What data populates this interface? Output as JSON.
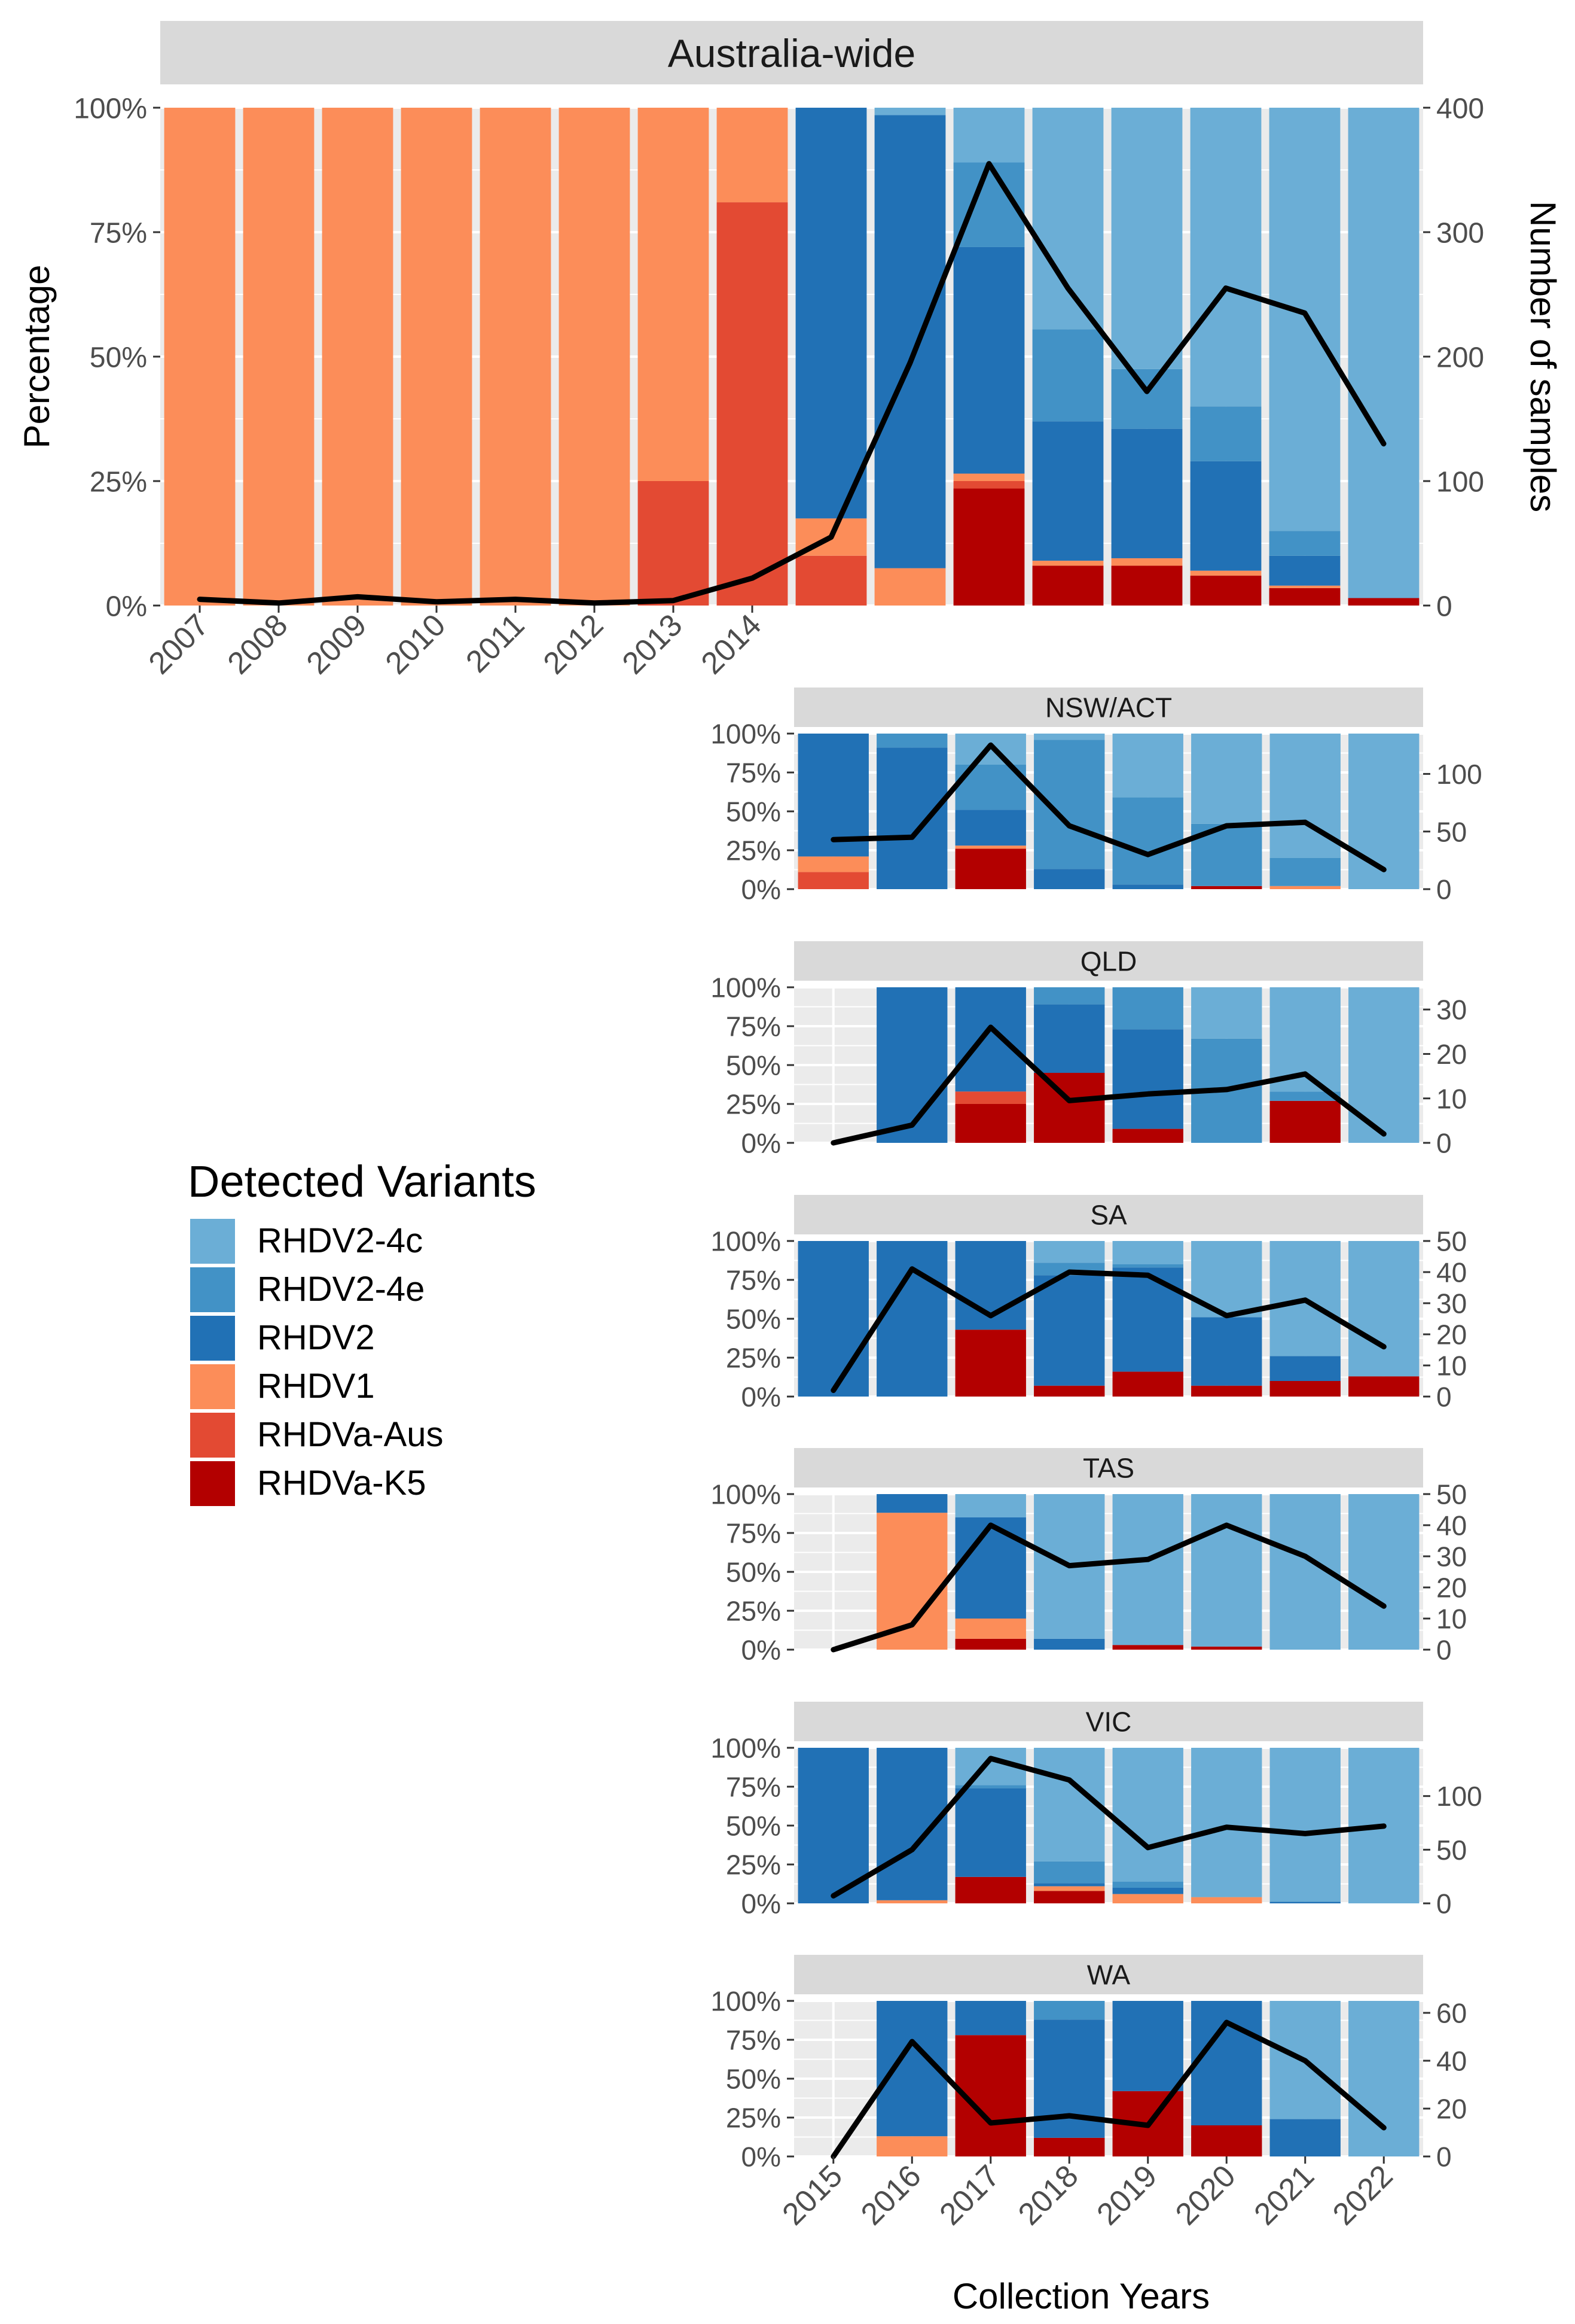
{
  "chart_data": {
    "type": "stacked_bar_with_line",
    "xlabel": "Collection Years",
    "ylabel": "Percentage",
    "y2label": "Number of samples",
    "legend": {
      "title": "Detected Variants",
      "items": [
        {
          "name": "RHDV2-4c",
          "color": "#6BAED6"
        },
        {
          "name": "RHDV2-4e",
          "color": "#4292C6"
        },
        {
          "name": "RHDV2",
          "color": "#2171B5"
        },
        {
          "name": "RHDV1",
          "color": "#FC8D59"
        },
        {
          "name": "RHDVa-Aus",
          "color": "#E34A33"
        },
        {
          "name": "RHDVa-K5",
          "color": "#B30000"
        }
      ]
    },
    "stack_order_bottom_to_top": [
      "RHDVa-K5",
      "RHDVa-Aus",
      "RHDV1",
      "RHDV2",
      "RHDV2-4e",
      "RHDV2-4c"
    ],
    "panels": [
      {
        "title": "Australia-wide",
        "years": [
          "2007",
          "2008",
          "2009",
          "2010",
          "2011",
          "2012",
          "2013",
          "2014",
          "2015",
          "2016",
          "2017",
          "2018",
          "2019",
          "2020",
          "2021",
          "2022"
        ],
        "y_ticks": [
          "0%",
          "25%",
          "50%",
          "75%",
          "100%"
        ],
        "y2_max": 400,
        "y2_ticks": [
          "0",
          "100",
          "200",
          "300",
          "400"
        ],
        "y2_tick_values": [
          0,
          100,
          200,
          300,
          400
        ],
        "samples": [
          5,
          2,
          7,
          3,
          5,
          2,
          4,
          22,
          55,
          195,
          355,
          255,
          172,
          255,
          235,
          130
        ],
        "bars": [
          {
            "year": "2007",
            "RHDVa-K5": 0,
            "RHDVa-Aus": 0,
            "RHDV1": 100,
            "RHDV2": 0,
            "RHDV2-4e": 0,
            "RHDV2-4c": 0
          },
          {
            "year": "2008",
            "RHDVa-K5": 0,
            "RHDVa-Aus": 0,
            "RHDV1": 100,
            "RHDV2": 0,
            "RHDV2-4e": 0,
            "RHDV2-4c": 0
          },
          {
            "year": "2009",
            "RHDVa-K5": 0,
            "RHDVa-Aus": 0,
            "RHDV1": 100,
            "RHDV2": 0,
            "RHDV2-4e": 0,
            "RHDV2-4c": 0
          },
          {
            "year": "2010",
            "RHDVa-K5": 0,
            "RHDVa-Aus": 0,
            "RHDV1": 100,
            "RHDV2": 0,
            "RHDV2-4e": 0,
            "RHDV2-4c": 0
          },
          {
            "year": "2011",
            "RHDVa-K5": 0,
            "RHDVa-Aus": 0,
            "RHDV1": 100,
            "RHDV2": 0,
            "RHDV2-4e": 0,
            "RHDV2-4c": 0
          },
          {
            "year": "2012",
            "RHDVa-K5": 0,
            "RHDVa-Aus": 0,
            "RHDV1": 100,
            "RHDV2": 0,
            "RHDV2-4e": 0,
            "RHDV2-4c": 0
          },
          {
            "year": "2013",
            "RHDVa-K5": 0,
            "RHDVa-Aus": 25,
            "RHDV1": 75,
            "RHDV2": 0,
            "RHDV2-4e": 0,
            "RHDV2-4c": 0
          },
          {
            "year": "2014",
            "RHDVa-K5": 0,
            "RHDVa-Aus": 81,
            "RHDV1": 19,
            "RHDV2": 0,
            "RHDV2-4e": 0,
            "RHDV2-4c": 0
          },
          {
            "year": "2015",
            "RHDVa-K5": 0,
            "RHDVa-Aus": 10,
            "RHDV1": 7.5,
            "RHDV2": 82.5,
            "RHDV2-4e": 0,
            "RHDV2-4c": 0
          },
          {
            "year": "2016",
            "RHDVa-K5": 0,
            "RHDVa-Aus": 0,
            "RHDV1": 7.5,
            "RHDV2": 91,
            "RHDV2-4e": 0,
            "RHDV2-4c": 1.5
          },
          {
            "year": "2017",
            "RHDVa-K5": 23.5,
            "RHDVa-Aus": 1.5,
            "RHDV1": 1.5,
            "RHDV2": 45.5,
            "RHDV2-4e": 17,
            "RHDV2-4c": 11
          },
          {
            "year": "2018",
            "RHDVa-K5": 8,
            "RHDVa-Aus": 0,
            "RHDV1": 1,
            "RHDV2": 28,
            "RHDV2-4e": 18.5,
            "RHDV2-4c": 44.5
          },
          {
            "year": "2019",
            "RHDVa-K5": 8,
            "RHDVa-Aus": 0,
            "RHDV1": 1.5,
            "RHDV2": 26,
            "RHDV2-4e": 12,
            "RHDV2-4c": 52.5
          },
          {
            "year": "2020",
            "RHDVa-K5": 6,
            "RHDVa-Aus": 0,
            "RHDV1": 1,
            "RHDV2": 22,
            "RHDV2-4e": 11,
            "RHDV2-4c": 60
          },
          {
            "year": "2021",
            "RHDVa-K5": 3.5,
            "RHDVa-Aus": 0,
            "RHDV1": 0.5,
            "RHDV2": 6,
            "RHDV2-4e": 5,
            "RHDV2-4c": 85
          },
          {
            "year": "2022",
            "RHDVa-K5": 1.5,
            "RHDVa-Aus": 0,
            "RHDV1": 0,
            "RHDV2": 0,
            "RHDV2-4e": 0,
            "RHDV2-4c": 98.5
          }
        ]
      },
      {
        "title": "NSW/ACT",
        "years": [
          "2015",
          "2016",
          "2017",
          "2018",
          "2019",
          "2020",
          "2021",
          "2022"
        ],
        "y_ticks": [
          "0%",
          "25%",
          "50%",
          "75%",
          "100%"
        ],
        "y2_max": 135,
        "y2_ticks": [
          "0",
          "50",
          "100"
        ],
        "y2_tick_values": [
          0,
          50,
          100
        ],
        "samples": [
          43,
          45,
          125,
          55,
          30,
          55,
          58,
          17
        ],
        "bars": [
          {
            "year": "2015",
            "RHDVa-K5": 0,
            "RHDVa-Aus": 11,
            "RHDV1": 10,
            "RHDV2": 79,
            "RHDV2-4e": 0,
            "RHDV2-4c": 0
          },
          {
            "year": "2016",
            "RHDVa-K5": 0,
            "RHDVa-Aus": 0,
            "RHDV1": 0,
            "RHDV2": 91,
            "RHDV2-4e": 9,
            "RHDV2-4c": 0
          },
          {
            "year": "2017",
            "RHDVa-K5": 26,
            "RHDVa-Aus": 0,
            "RHDV1": 2,
            "RHDV2": 23,
            "RHDV2-4e": 29,
            "RHDV2-4c": 20
          },
          {
            "year": "2018",
            "RHDVa-K5": 0,
            "RHDVa-Aus": 0,
            "RHDV1": 0,
            "RHDV2": 13,
            "RHDV2-4e": 83,
            "RHDV2-4c": 4
          },
          {
            "year": "2019",
            "RHDVa-K5": 0,
            "RHDVa-Aus": 0,
            "RHDV1": 0,
            "RHDV2": 3,
            "RHDV2-4e": 56,
            "RHDV2-4c": 41
          },
          {
            "year": "2020",
            "RHDVa-K5": 2,
            "RHDVa-Aus": 0,
            "RHDV1": 0,
            "RHDV2": 0,
            "RHDV2-4e": 40,
            "RHDV2-4c": 58
          },
          {
            "year": "2021",
            "RHDVa-K5": 0,
            "RHDVa-Aus": 0,
            "RHDV1": 2,
            "RHDV2": 0,
            "RHDV2-4e": 18,
            "RHDV2-4c": 80
          },
          {
            "year": "2022",
            "RHDVa-K5": 0,
            "RHDVa-Aus": 0,
            "RHDV1": 0,
            "RHDV2": 0,
            "RHDV2-4e": 0,
            "RHDV2-4c": 100
          }
        ]
      },
      {
        "title": "QLD",
        "years": [
          "2015",
          "2016",
          "2017",
          "2018",
          "2019",
          "2020",
          "2021",
          "2022"
        ],
        "y_ticks": [
          "0%",
          "25%",
          "50%",
          "75%",
          "100%"
        ],
        "y2_max": 35,
        "y2_ticks": [
          "0",
          "10",
          "20",
          "30"
        ],
        "y2_tick_values": [
          0,
          10,
          20,
          30
        ],
        "samples": [
          0,
          4,
          26,
          9.5,
          11,
          12,
          15.5,
          2
        ],
        "bars": [
          {
            "year": "2015",
            "RHDVa-K5": 0,
            "RHDVa-Aus": 0,
            "RHDV1": 0,
            "RHDV2": 0,
            "RHDV2-4e": 0,
            "RHDV2-4c": 0
          },
          {
            "year": "2016",
            "RHDVa-K5": 0,
            "RHDVa-Aus": 0,
            "RHDV1": 0,
            "RHDV2": 100,
            "RHDV2-4e": 0,
            "RHDV2-4c": 0
          },
          {
            "year": "2017",
            "RHDVa-K5": 25,
            "RHDVa-Aus": 8,
            "RHDV1": 0,
            "RHDV2": 67,
            "RHDV2-4e": 0,
            "RHDV2-4c": 0
          },
          {
            "year": "2018",
            "RHDVa-K5": 45,
            "RHDVa-Aus": 0,
            "RHDV1": 0,
            "RHDV2": 44,
            "RHDV2-4e": 11,
            "RHDV2-4c": 0
          },
          {
            "year": "2019",
            "RHDVa-K5": 9,
            "RHDVa-Aus": 0,
            "RHDV1": 0,
            "RHDV2": 64,
            "RHDV2-4e": 27,
            "RHDV2-4c": 0
          },
          {
            "year": "2020",
            "RHDVa-K5": 0,
            "RHDVa-Aus": 0,
            "RHDV1": 0,
            "RHDV2": 0,
            "RHDV2-4e": 67,
            "RHDV2-4c": 33
          },
          {
            "year": "2021",
            "RHDVa-K5": 27,
            "RHDVa-Aus": 0,
            "RHDV1": 0,
            "RHDV2": 0,
            "RHDV2-4e": 6,
            "RHDV2-4c": 67
          },
          {
            "year": "2022",
            "RHDVa-K5": 0,
            "RHDVa-Aus": 0,
            "RHDV1": 0,
            "RHDV2": 0,
            "RHDV2-4e": 0,
            "RHDV2-4c": 100
          }
        ]
      },
      {
        "title": "SA",
        "years": [
          "2015",
          "2016",
          "2017",
          "2018",
          "2019",
          "2020",
          "2021",
          "2022"
        ],
        "y_ticks": [
          "0%",
          "25%",
          "50%",
          "75%",
          "100%"
        ],
        "y2_max": 50,
        "y2_ticks": [
          "0",
          "10",
          "20",
          "30",
          "40",
          "50"
        ],
        "y2_tick_values": [
          0,
          10,
          20,
          30,
          40,
          50
        ],
        "samples": [
          2,
          41,
          26,
          40,
          39,
          26,
          31,
          16
        ],
        "bars": [
          {
            "year": "2015",
            "RHDVa-K5": 0,
            "RHDVa-Aus": 0,
            "RHDV1": 0,
            "RHDV2": 100,
            "RHDV2-4e": 0,
            "RHDV2-4c": 0
          },
          {
            "year": "2016",
            "RHDVa-K5": 0,
            "RHDVa-Aus": 0,
            "RHDV1": 0,
            "RHDV2": 100,
            "RHDV2-4e": 0,
            "RHDV2-4c": 0
          },
          {
            "year": "2017",
            "RHDVa-K5": 43,
            "RHDVa-Aus": 0,
            "RHDV1": 0,
            "RHDV2": 57,
            "RHDV2-4e": 0,
            "RHDV2-4c": 0
          },
          {
            "year": "2018",
            "RHDVa-K5": 7,
            "RHDVa-Aus": 0,
            "RHDV1": 0,
            "RHDV2": 71,
            "RHDV2-4e": 8,
            "RHDV2-4c": 14
          },
          {
            "year": "2019",
            "RHDVa-K5": 16,
            "RHDVa-Aus": 0,
            "RHDV1": 0,
            "RHDV2": 67,
            "RHDV2-4e": 2,
            "RHDV2-4c": 15
          },
          {
            "year": "2020",
            "RHDVa-K5": 7,
            "RHDVa-Aus": 0,
            "RHDV1": 0,
            "RHDV2": 44,
            "RHDV2-4e": 0,
            "RHDV2-4c": 49
          },
          {
            "year": "2021",
            "RHDVa-K5": 10,
            "RHDVa-Aus": 0,
            "RHDV1": 0,
            "RHDV2": 16,
            "RHDV2-4e": 0,
            "RHDV2-4c": 74
          },
          {
            "year": "2022",
            "RHDVa-K5": 13,
            "RHDVa-Aus": 0,
            "RHDV1": 0,
            "RHDV2": 0,
            "RHDV2-4e": 0,
            "RHDV2-4c": 87
          }
        ]
      },
      {
        "title": "TAS",
        "years": [
          "2015",
          "2016",
          "2017",
          "2018",
          "2019",
          "2020",
          "2021",
          "2022"
        ],
        "y_ticks": [
          "0%",
          "25%",
          "50%",
          "75%",
          "100%"
        ],
        "y2_max": 50,
        "y2_ticks": [
          "0",
          "10",
          "20",
          "30",
          "40",
          "50"
        ],
        "y2_tick_values": [
          0,
          10,
          20,
          30,
          40,
          50
        ],
        "samples": [
          0,
          8,
          40,
          27,
          29,
          40,
          30,
          14
        ],
        "bars": [
          {
            "year": "2015",
            "RHDVa-K5": 0,
            "RHDVa-Aus": 0,
            "RHDV1": 0,
            "RHDV2": 0,
            "RHDV2-4e": 0,
            "RHDV2-4c": 0
          },
          {
            "year": "2016",
            "RHDVa-K5": 0,
            "RHDVa-Aus": 0,
            "RHDV1": 88,
            "RHDV2": 12,
            "RHDV2-4e": 0,
            "RHDV2-4c": 0
          },
          {
            "year": "2017",
            "RHDVa-K5": 7,
            "RHDVa-Aus": 0,
            "RHDV1": 13,
            "RHDV2": 65,
            "RHDV2-4e": 0,
            "RHDV2-4c": 15
          },
          {
            "year": "2018",
            "RHDVa-K5": 0,
            "RHDVa-Aus": 0,
            "RHDV1": 0,
            "RHDV2": 7,
            "RHDV2-4e": 0,
            "RHDV2-4c": 93
          },
          {
            "year": "2019",
            "RHDVa-K5": 3,
            "RHDVa-Aus": 0,
            "RHDV1": 0,
            "RHDV2": 0,
            "RHDV2-4e": 0,
            "RHDV2-4c": 97
          },
          {
            "year": "2020",
            "RHDVa-K5": 2,
            "RHDVa-Aus": 0,
            "RHDV1": 0,
            "RHDV2": 0,
            "RHDV2-4e": 0,
            "RHDV2-4c": 98
          },
          {
            "year": "2021",
            "RHDVa-K5": 0,
            "RHDVa-Aus": 0,
            "RHDV1": 0,
            "RHDV2": 0,
            "RHDV2-4e": 0,
            "RHDV2-4c": 100
          },
          {
            "year": "2022",
            "RHDVa-K5": 0,
            "RHDVa-Aus": 0,
            "RHDV1": 0,
            "RHDV2": 0,
            "RHDV2-4e": 0,
            "RHDV2-4c": 100
          }
        ]
      },
      {
        "title": "VIC",
        "years": [
          "2015",
          "2016",
          "2017",
          "2018",
          "2019",
          "2020",
          "2021",
          "2022"
        ],
        "y_ticks": [
          "0%",
          "25%",
          "50%",
          "75%",
          "100%"
        ],
        "y2_max": 145,
        "y2_ticks": [
          "0",
          "50",
          "100"
        ],
        "y2_tick_values": [
          0,
          50,
          100
        ],
        "samples": [
          7,
          50,
          135,
          115,
          52,
          71,
          65,
          72
        ],
        "bars": [
          {
            "year": "2015",
            "RHDVa-K5": 0,
            "RHDVa-Aus": 0,
            "RHDV1": 0,
            "RHDV2": 100,
            "RHDV2-4e": 0,
            "RHDV2-4c": 0
          },
          {
            "year": "2016",
            "RHDVa-K5": 0,
            "RHDVa-Aus": 0,
            "RHDV1": 2,
            "RHDV2": 98,
            "RHDV2-4e": 0,
            "RHDV2-4c": 0
          },
          {
            "year": "2017",
            "RHDVa-K5": 17,
            "RHDVa-Aus": 0,
            "RHDV1": 0,
            "RHDV2": 57,
            "RHDV2-4e": 2,
            "RHDV2-4c": 24
          },
          {
            "year": "2018",
            "RHDVa-K5": 8,
            "RHDVa-Aus": 0,
            "RHDV1": 3,
            "RHDV2": 2,
            "RHDV2-4e": 14,
            "RHDV2-4c": 73
          },
          {
            "year": "2019",
            "RHDVa-K5": 0,
            "RHDVa-Aus": 0,
            "RHDV1": 6,
            "RHDV2": 4,
            "RHDV2-4e": 4,
            "RHDV2-4c": 86
          },
          {
            "year": "2020",
            "RHDVa-K5": 0,
            "RHDVa-Aus": 0,
            "RHDV1": 4,
            "RHDV2": 0,
            "RHDV2-4e": 0,
            "RHDV2-4c": 96
          },
          {
            "year": "2021",
            "RHDVa-K5": 0,
            "RHDVa-Aus": 0,
            "RHDV1": 0,
            "RHDV2": 1,
            "RHDV2-4e": 0,
            "RHDV2-4c": 99
          },
          {
            "year": "2022",
            "RHDVa-K5": 0,
            "RHDVa-Aus": 0,
            "RHDV1": 0,
            "RHDV2": 0,
            "RHDV2-4e": 0,
            "RHDV2-4c": 100
          }
        ]
      },
      {
        "title": "WA",
        "years": [
          "2015",
          "2016",
          "2017",
          "2018",
          "2019",
          "2020",
          "2021",
          "2022"
        ],
        "y_ticks": [
          "0%",
          "25%",
          "50%",
          "75%",
          "100%"
        ],
        "y2_max": 65,
        "y2_ticks": [
          "0",
          "20",
          "40",
          "60"
        ],
        "y2_tick_values": [
          0,
          20,
          40,
          60
        ],
        "samples": [
          0,
          48,
          14,
          17,
          13,
          56,
          40,
          12
        ],
        "bars": [
          {
            "year": "2015",
            "RHDVa-K5": 0,
            "RHDVa-Aus": 0,
            "RHDV1": 0,
            "RHDV2": 0,
            "RHDV2-4e": 0,
            "RHDV2-4c": 0
          },
          {
            "year": "2016",
            "RHDVa-K5": 0,
            "RHDVa-Aus": 0,
            "RHDV1": 13,
            "RHDV2": 87,
            "RHDV2-4e": 0,
            "RHDV2-4c": 0
          },
          {
            "year": "2017",
            "RHDVa-K5": 78,
            "RHDVa-Aus": 0,
            "RHDV1": 0,
            "RHDV2": 22,
            "RHDV2-4e": 0,
            "RHDV2-4c": 0
          },
          {
            "year": "2018",
            "RHDVa-K5": 12,
            "RHDVa-Aus": 0,
            "RHDV1": 0,
            "RHDV2": 76,
            "RHDV2-4e": 12,
            "RHDV2-4c": 0
          },
          {
            "year": "2019",
            "RHDVa-K5": 42,
            "RHDVa-Aus": 0,
            "RHDV1": 0,
            "RHDV2": 58,
            "RHDV2-4e": 0,
            "RHDV2-4c": 0
          },
          {
            "year": "2020",
            "RHDVa-K5": 20,
            "RHDVa-Aus": 0,
            "RHDV1": 0,
            "RHDV2": 80,
            "RHDV2-4e": 0,
            "RHDV2-4c": 0
          },
          {
            "year": "2021",
            "RHDVa-K5": 0,
            "RHDVa-Aus": 0,
            "RHDV1": 0,
            "RHDV2": 24,
            "RHDV2-4e": 0,
            "RHDV2-4c": 76
          },
          {
            "year": "2022",
            "RHDVa-K5": 0,
            "RHDVa-Aus": 0,
            "RHDV1": 0,
            "RHDV2": 0,
            "RHDV2-4e": 0,
            "RHDV2-4c": 100
          }
        ]
      }
    ]
  }
}
